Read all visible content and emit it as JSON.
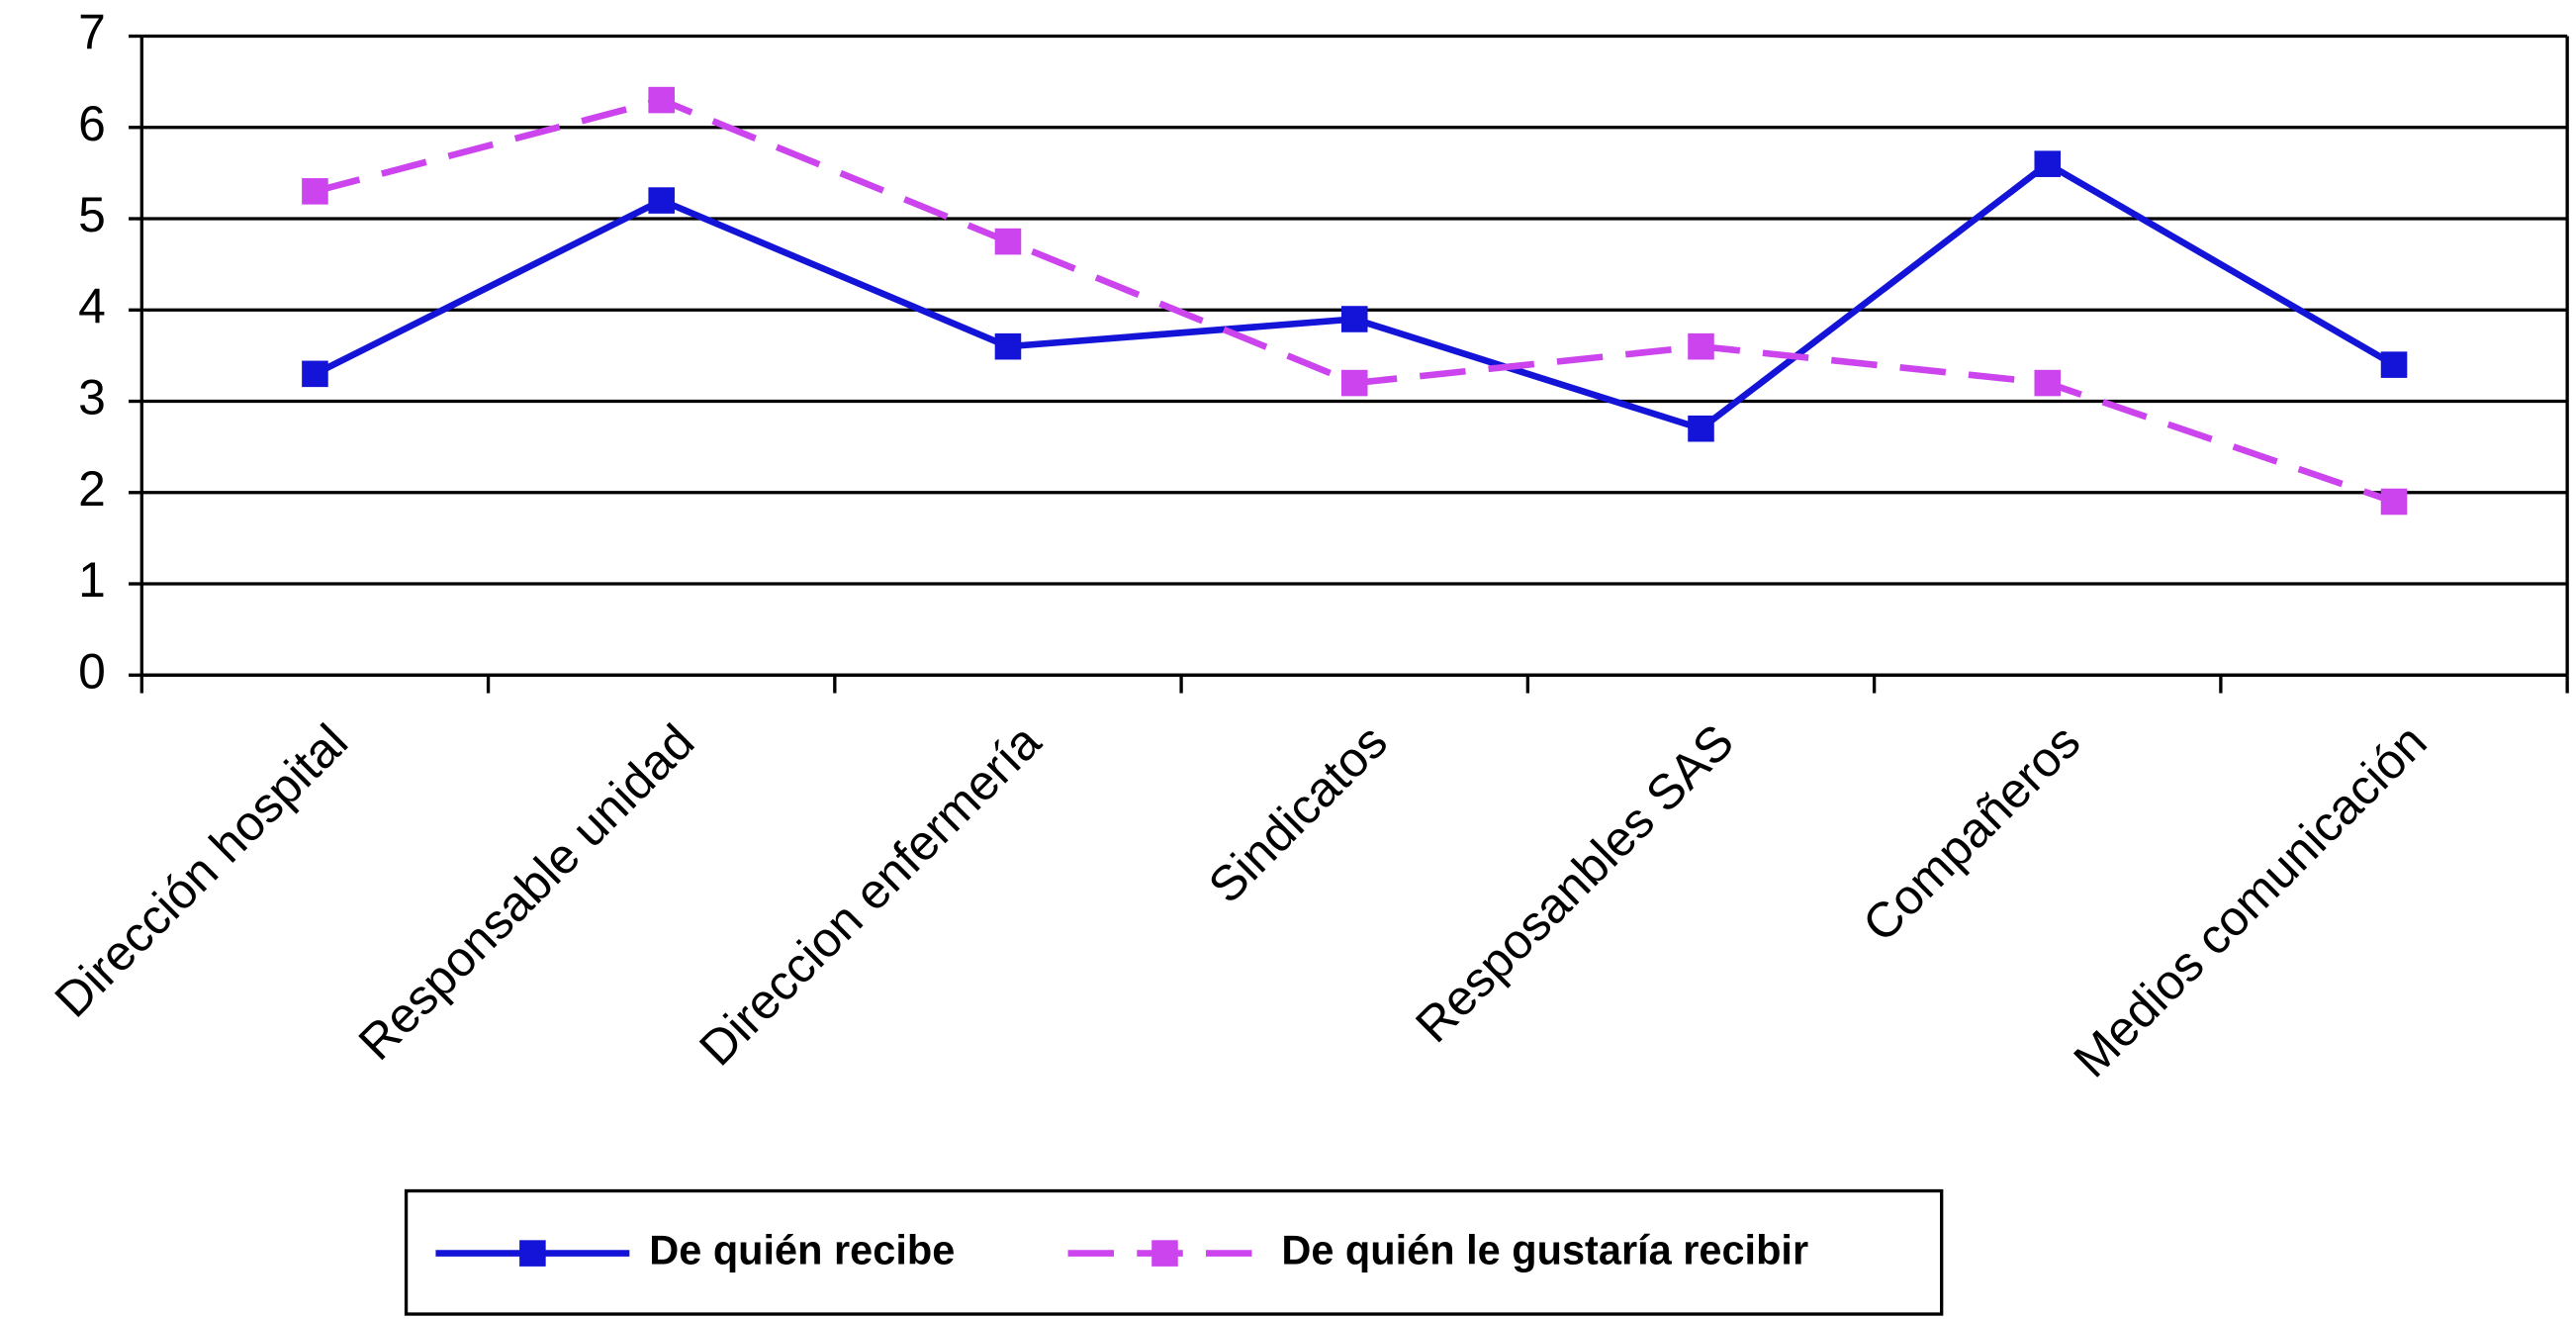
{
  "chart_data": {
    "type": "line",
    "categories": [
      "Dirección hospital",
      "Responsable unidad",
      "Direccion enfermería",
      "Sindicatos",
      "Resposanbles SAS",
      "Compañeros",
      "Medios comunicación"
    ],
    "series": [
      {
        "name": "De quién recibe",
        "color": "#1414d8",
        "dashed": false,
        "values": [
          3.3,
          5.2,
          3.6,
          3.9,
          2.7,
          5.6,
          3.4
        ]
      },
      {
        "name": "De quién le gustaría recibir",
        "color": "#cc44ee",
        "dashed": true,
        "values": [
          5.3,
          6.3,
          4.75,
          3.2,
          3.6,
          3.2,
          1.9
        ]
      }
    ],
    "ylim": [
      0,
      7
    ],
    "yticks": [
      0,
      1,
      2,
      3,
      4,
      5,
      6,
      7
    ],
    "grid": true,
    "legend": "bottom"
  }
}
